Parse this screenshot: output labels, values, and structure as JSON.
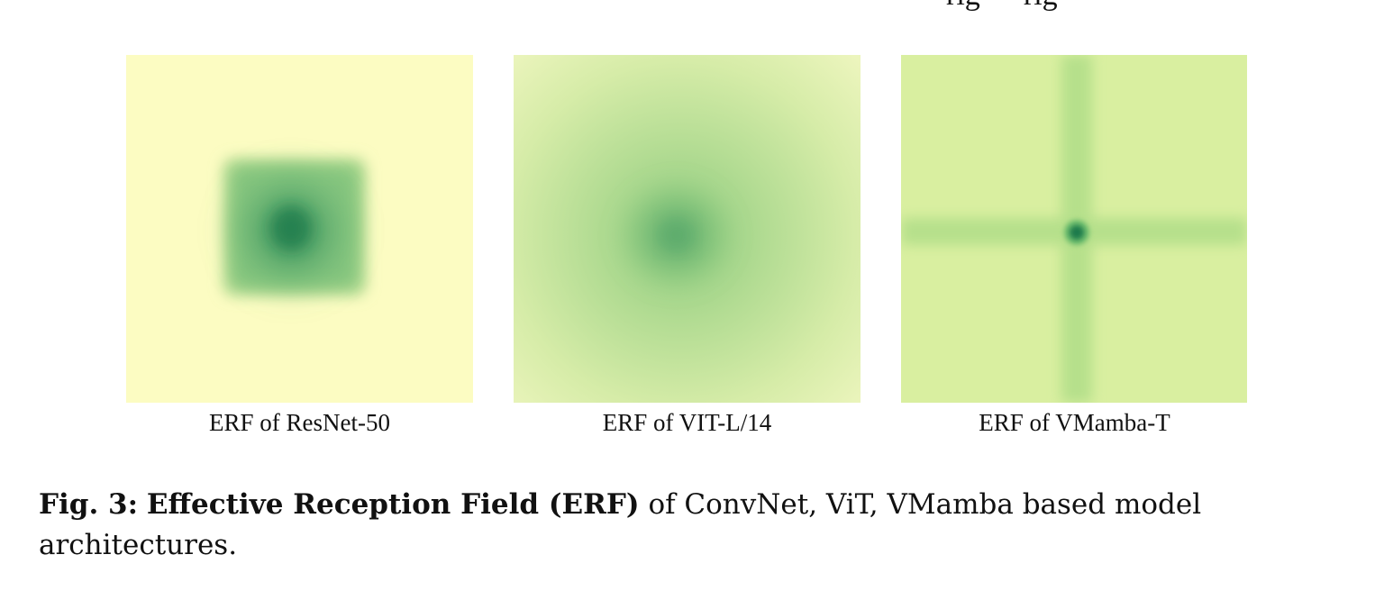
{
  "top_clipped_text": "rig · · rig",
  "panels": [
    {
      "id": "resnet",
      "caption": "ERF of ResNet-50"
    },
    {
      "id": "vit",
      "caption": "ERF of VIT-L/14"
    },
    {
      "id": "vmamba",
      "caption": "ERF of VMamba-T"
    }
  ],
  "figure_caption": {
    "label": "Fig. 3:",
    "title": "Effective Reception Field (ERF)",
    "text": "of ConvNet, ViT, VMamba based model architectures."
  },
  "colors": {
    "background_light": "#fcfcc2",
    "vit_background": "#e6f2b0",
    "vmamba_background": "#d9efa0",
    "center_dark": "#1f7a4c",
    "mid_green": "#5fb06a"
  }
}
